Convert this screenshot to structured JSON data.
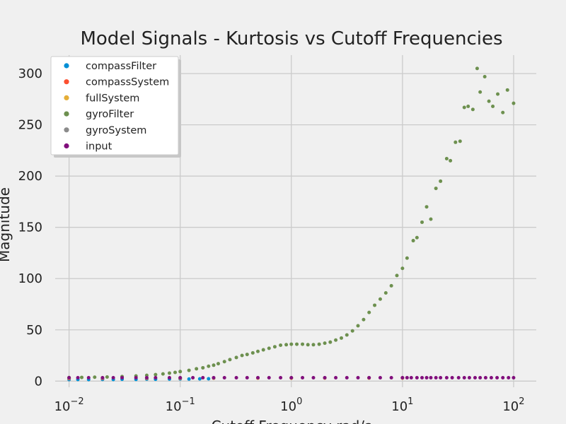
{
  "chart_data": {
    "type": "scatter",
    "title": "Model Signals - Kurtosis vs Cutoff Frequencies",
    "xlabel": "Cutoff Frequency rad/s",
    "ylabel": "Magnitude",
    "xscale": "log",
    "xlim": [
      0.0075,
      160
    ],
    "ylim": [
      -6,
      318
    ],
    "x_ticks": [
      0.01,
      0.1,
      1,
      10,
      100
    ],
    "x_tick_labels": [
      {
        "base": "10",
        "exp": "−2"
      },
      {
        "base": "10",
        "exp": "−1"
      },
      {
        "base": "10",
        "exp": "0"
      },
      {
        "base": "10",
        "exp": "1"
      },
      {
        "base": "10",
        "exp": "2"
      }
    ],
    "y_ticks": [
      0,
      50,
      100,
      150,
      200,
      250,
      300
    ],
    "y_tick_labels": [
      "0",
      "50",
      "100",
      "150",
      "200",
      "250",
      "300"
    ],
    "grid": true,
    "legend_position": "top-left",
    "series": [
      {
        "name": "compassFilter",
        "color": "#008fd5",
        "x": [
          0.01,
          0.012,
          0.015,
          0.02,
          0.025,
          0.03,
          0.04,
          0.05,
          0.06,
          0.08,
          0.1,
          0.12,
          0.15,
          0.18
        ],
        "y": [
          1.5,
          1.6,
          1.5,
          1.7,
          1.6,
          1.8,
          1.7,
          1.9,
          1.8,
          2.0,
          2.1,
          2.0,
          2.2,
          2.3
        ]
      },
      {
        "name": "compassSystem",
        "color": "#fc4f30",
        "x": [
          0.01,
          0.02,
          0.05,
          0.1,
          0.2,
          0.5,
          1,
          2,
          5,
          10
        ],
        "y": [
          2.5,
          2.6,
          2.7,
          2.7,
          2.8,
          2.9,
          2.9,
          3.0,
          3.0,
          3.0
        ]
      },
      {
        "name": "fullSystem",
        "color": "#e5ae38",
        "x": [
          0.01,
          0.02,
          0.05,
          0.1,
          0.2,
          0.5,
          1,
          2,
          5,
          10
        ],
        "y": [
          2.8,
          2.9,
          2.9,
          3.0,
          3.0,
          3.0,
          3.1,
          3.1,
          3.1,
          3.1
        ]
      },
      {
        "name": "gyroFilter",
        "color": "#6d904f",
        "x": [
          0.01,
          0.013,
          0.017,
          0.022,
          0.03,
          0.04,
          0.05,
          0.06,
          0.07,
          0.08,
          0.09,
          0.1,
          0.12,
          0.14,
          0.16,
          0.18,
          0.2,
          0.22,
          0.25,
          0.28,
          0.32,
          0.36,
          0.4,
          0.45,
          0.5,
          0.56,
          0.63,
          0.71,
          0.8,
          0.9,
          1.0,
          1.12,
          1.26,
          1.41,
          1.58,
          1.78,
          2.0,
          2.24,
          2.51,
          2.82,
          3.16,
          3.55,
          3.98,
          4.47,
          5.01,
          5.62,
          6.31,
          7.08,
          7.94,
          8.91,
          10.0,
          11.0,
          12.5,
          13.5,
          15.0,
          16.5,
          18.0,
          20.0,
          22.0,
          25.0,
          27.0,
          30.0,
          33.0,
          36.0,
          39.0,
          43.0,
          47.0,
          50.0,
          55.0,
          60.0,
          65.0,
          72.0,
          80.0,
          88.0,
          100.0
        ],
        "y": [
          3.5,
          3.6,
          3.8,
          4.0,
          4.4,
          5.0,
          5.6,
          6.3,
          7.0,
          7.8,
          8.5,
          9.3,
          10.5,
          12,
          13,
          14.5,
          15.5,
          17,
          19,
          21,
          23,
          25,
          26,
          27.5,
          29,
          30.5,
          32,
          33.5,
          35,
          35.5,
          36,
          36,
          36,
          35.5,
          35.5,
          36,
          37,
          38,
          40,
          42,
          45,
          49,
          54,
          60,
          67,
          74,
          80,
          86,
          93,
          103,
          110,
          120,
          137,
          140,
          155,
          170,
          158,
          188,
          195,
          217,
          215,
          233,
          234,
          267,
          268,
          265,
          305,
          282,
          297,
          273,
          268,
          280,
          262,
          284,
          271
        ]
      },
      {
        "name": "gyroSystem",
        "color": "#8b8b8b",
        "x": [
          0.01,
          0.02,
          0.05,
          0.1,
          0.2,
          0.5,
          1,
          2,
          5,
          10
        ],
        "y": [
          3.0,
          3.0,
          3.1,
          3.1,
          3.1,
          3.2,
          3.2,
          3.2,
          3.2,
          3.2
        ]
      },
      {
        "name": "input",
        "color": "#810f7c",
        "x": [
          0.01,
          0.012,
          0.015,
          0.02,
          0.025,
          0.03,
          0.04,
          0.05,
          0.06,
          0.08,
          0.1,
          0.13,
          0.16,
          0.2,
          0.25,
          0.32,
          0.4,
          0.5,
          0.63,
          0.8,
          1.0,
          1.26,
          1.58,
          2.0,
          2.51,
          3.16,
          3.98,
          5.01,
          6.31,
          7.94,
          10.0,
          11.0,
          12.0,
          13.5,
          15.0,
          16.5,
          18.0,
          20.0,
          22.0,
          25.0,
          28.0,
          32.0,
          36.0,
          40.0,
          45.0,
          50.0,
          56.0,
          63.0,
          71.0,
          80.0,
          90.0,
          100.0
        ],
        "y": [
          3.3,
          3.3,
          3.3,
          3.3,
          3.3,
          3.3,
          3.3,
          3.3,
          3.3,
          3.3,
          3.3,
          3.3,
          3.3,
          3.3,
          3.3,
          3.3,
          3.3,
          3.3,
          3.3,
          3.3,
          3.3,
          3.3,
          3.3,
          3.3,
          3.3,
          3.3,
          3.3,
          3.3,
          3.3,
          3.3,
          3.3,
          3.3,
          3.3,
          3.3,
          3.3,
          3.3,
          3.3,
          3.3,
          3.3,
          3.3,
          3.3,
          3.3,
          3.3,
          3.3,
          3.3,
          3.3,
          3.3,
          3.3,
          3.3,
          3.3,
          3.3,
          3.3
        ]
      }
    ]
  }
}
